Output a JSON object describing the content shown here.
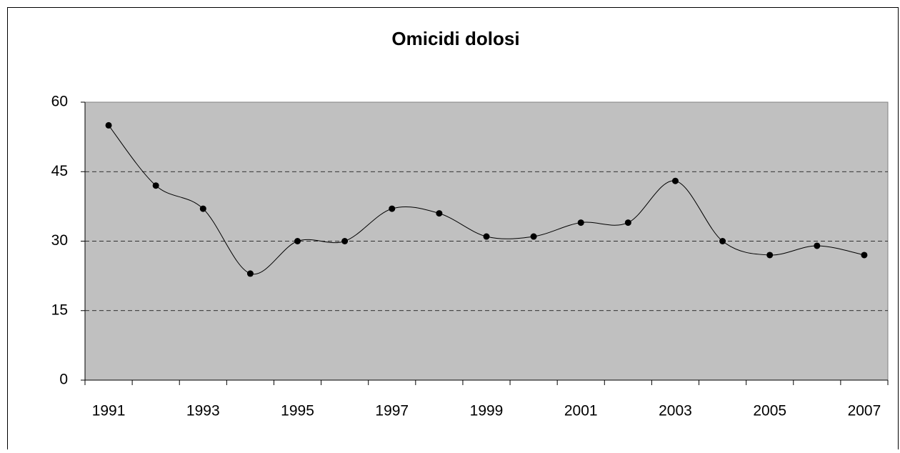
{
  "chart_data": {
    "type": "line",
    "title": "Omicidi dolosi",
    "categories": [
      "1991",
      null,
      "1993",
      null,
      "1995",
      null,
      "1997",
      null,
      "1999",
      null,
      "2001",
      null,
      "2003",
      null,
      "2005",
      null,
      "2007"
    ],
    "values": [
      55,
      42,
      37,
      23,
      30,
      30,
      37,
      36,
      31,
      31,
      34,
      34,
      43,
      30,
      27,
      29,
      27
    ],
    "color": "#000000",
    "ylim": [
      0,
      60
    ],
    "yticks": [
      0,
      15,
      30,
      45,
      60
    ],
    "grid": true
  }
}
